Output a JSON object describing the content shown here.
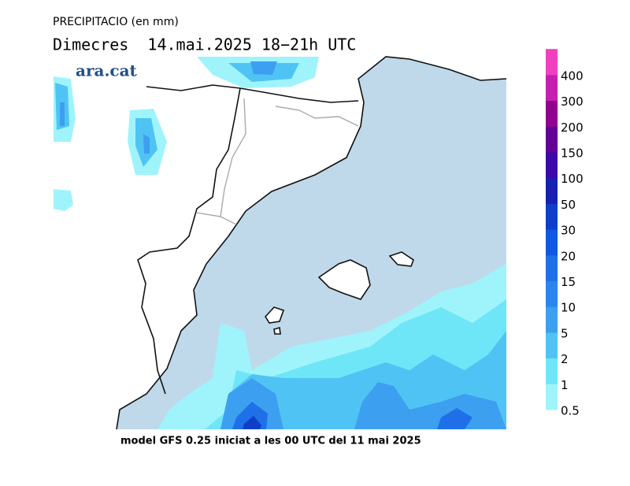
{
  "title": "PRECIPITACIO (en mm)",
  "subtitle": "Dimecres  14.mai.2025 18−21h UTC",
  "logo": "ara.cat",
  "footer": "model GFS 0.25 iniciat a les 00 UTC del 11 mai 2025",
  "legend": {
    "levels": [
      0.5,
      1,
      2,
      5,
      10,
      15,
      20,
      30,
      50,
      100,
      150,
      200,
      300,
      400
    ],
    "colors": [
      "#9ff4fb",
      "#6fe6f8",
      "#4fc4f4",
      "#3c9ff0",
      "#2a86ee",
      "#1f70e8",
      "#0f58e0",
      "#0f3fc8",
      "#1820b0",
      "#3c08a8",
      "#620098",
      "#920090",
      "#c420b0",
      "#f040c0"
    ]
  }
}
